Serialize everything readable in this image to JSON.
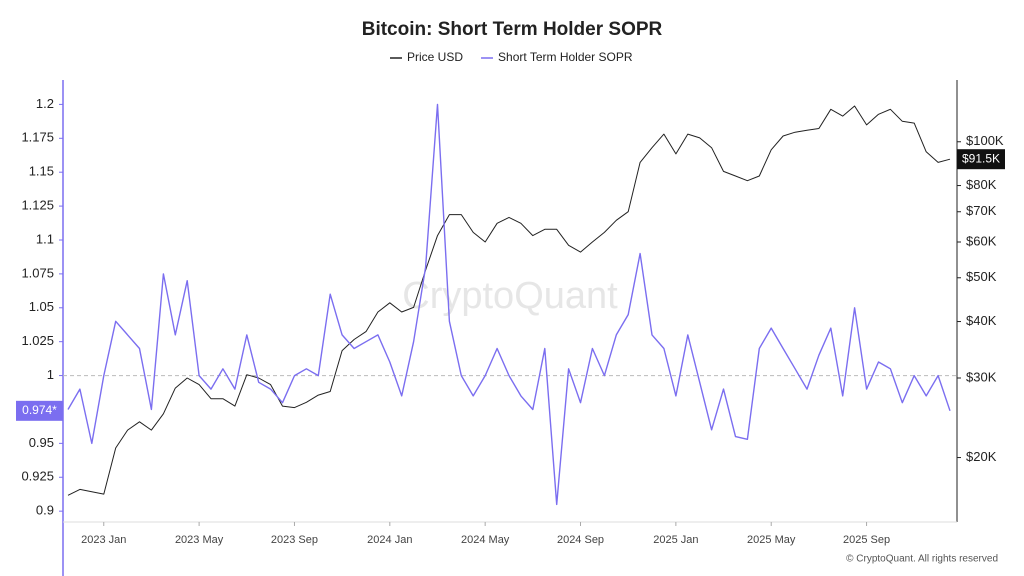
{
  "chart_data": {
    "type": "line",
    "title": "Bitcoin: Short Term Holder SOPR",
    "watermark": "CryptoQuant",
    "footer": "© CryptoQuant. All rights reserved",
    "categories": [
      null,
      null,
      null,
      "2023 Jan",
      null,
      null,
      null,
      null,
      null,
      null,
      null,
      "2023 May",
      null,
      null,
      null,
      null,
      null,
      null,
      null,
      "2023 Sep",
      null,
      null,
      null,
      null,
      null,
      null,
      null,
      "2024 Jan",
      null,
      null,
      null,
      null,
      null,
      null,
      null,
      "2024 May",
      null,
      null,
      null,
      null,
      null,
      null,
      null,
      "2024 Sep",
      null,
      null,
      null,
      null,
      null,
      null,
      null,
      "2025 Jan",
      null,
      null,
      null,
      null,
      null,
      null,
      null,
      "2025 May",
      null,
      null,
      null,
      null,
      null,
      null,
      null,
      "2025 Sep",
      null,
      null,
      null,
      null,
      null,
      null,
      null
    ],
    "series": [
      {
        "name": "Price USD",
        "color": "#222222",
        "axis": "y2",
        "values": [
          16500,
          17000,
          16800,
          16600,
          21000,
          23000,
          24000,
          23000,
          25000,
          28500,
          30000,
          29000,
          27000,
          27000,
          26000,
          30500,
          30000,
          29000,
          26000,
          25800,
          26500,
          27500,
          28000,
          34500,
          36500,
          38000,
          42000,
          44000,
          42000,
          43000,
          52000,
          62000,
          69000,
          69000,
          63000,
          60000,
          66000,
          68000,
          66000,
          62000,
          64000,
          64000,
          59000,
          57000,
          60000,
          63000,
          67000,
          70000,
          90000,
          97000,
          104000,
          94000,
          104000,
          102000,
          97000,
          86000,
          84000,
          82000,
          84000,
          96000,
          103000,
          105000,
          106000,
          107000,
          118000,
          114000,
          120000,
          109000,
          115000,
          118000,
          111000,
          110000,
          95000,
          90000,
          91500
        ],
        "value_labels": [
          null,
          null,
          null,
          null,
          null,
          null,
          null,
          null,
          null,
          null,
          null,
          null,
          null,
          null,
          null,
          null,
          null,
          null,
          null,
          null,
          null,
          null,
          null,
          null,
          null,
          null,
          null,
          null,
          null,
          null,
          null,
          null,
          null,
          null,
          null,
          null,
          null,
          null,
          null,
          null,
          null,
          null,
          null,
          null,
          null,
          null,
          null,
          null,
          null,
          null,
          null,
          null,
          null,
          null,
          null,
          null,
          null,
          null,
          null,
          null,
          null,
          null,
          null,
          null,
          null,
          null,
          null,
          null,
          null,
          null,
          null,
          null,
          null,
          null,
          "$91.5K"
        ]
      },
      {
        "name": "Short Term Holder SOPR",
        "color": "#7b6ef0",
        "values": [
          0.975,
          0.99,
          0.95,
          1.0,
          1.04,
          1.03,
          1.02,
          0.975,
          1.075,
          1.03,
          1.07,
          1.0,
          0.99,
          1.005,
          0.99,
          1.03,
          0.995,
          0.99,
          0.98,
          1.0,
          1.005,
          1.0,
          1.06,
          1.03,
          1.02,
          1.025,
          1.03,
          1.01,
          0.985,
          1.025,
          1.08,
          1.2,
          1.04,
          1.0,
          0.985,
          1.0,
          1.02,
          1.0,
          0.985,
          0.975,
          1.02,
          0.905,
          1.005,
          0.98,
          1.02,
          1.0,
          1.03,
          1.045,
          1.09,
          1.03,
          1.02,
          0.985,
          1.03,
          0.995,
          0.96,
          0.99,
          0.955,
          0.953,
          1.02,
          1.035,
          1.02,
          1.005,
          0.99,
          1.015,
          1.035,
          0.985,
          1.05,
          0.99,
          1.01,
          1.005,
          0.98,
          1.0,
          0.985,
          1.0,
          0.974
        ],
        "value_labels": [
          null,
          null,
          null,
          null,
          null,
          null,
          null,
          null,
          null,
          null,
          null,
          null,
          null,
          null,
          null,
          null,
          null,
          null,
          null,
          null,
          null,
          null,
          null,
          null,
          null,
          null,
          null,
          null,
          null,
          null,
          null,
          null,
          null,
          null,
          null,
          null,
          null,
          null,
          null,
          null,
          null,
          null,
          null,
          null,
          null,
          null,
          null,
          null,
          null,
          null,
          null,
          null,
          null,
          null,
          null,
          null,
          null,
          null,
          null,
          null,
          null,
          null,
          null,
          null,
          null,
          null,
          null,
          null,
          null,
          null,
          null,
          null,
          null,
          null,
          "0.974*"
        ]
      }
    ],
    "ylim": [
      0.892,
      1.218
    ],
    "yticks": [
      0.9,
      0.925,
      0.95,
      1,
      1.025,
      1.05,
      1.075,
      1.1,
      1.125,
      1.15,
      1.175,
      1.2
    ],
    "y2lim": [
      14400,
      137000
    ],
    "y2_log": true,
    "y2ticks": [
      {
        "value": 20000,
        "label": "$20K"
      },
      {
        "value": 30000,
        "label": "$30K"
      },
      {
        "value": 40000,
        "label": "$40K"
      },
      {
        "value": 50000,
        "label": "$50K"
      },
      {
        "value": 60000,
        "label": "$60K"
      },
      {
        "value": 70000,
        "label": "$70K"
      },
      {
        "value": 80000,
        "label": "$80K"
      },
      {
        "value": 100000,
        "label": "$100K"
      }
    ],
    "reference_line": 1,
    "legend": "top"
  }
}
